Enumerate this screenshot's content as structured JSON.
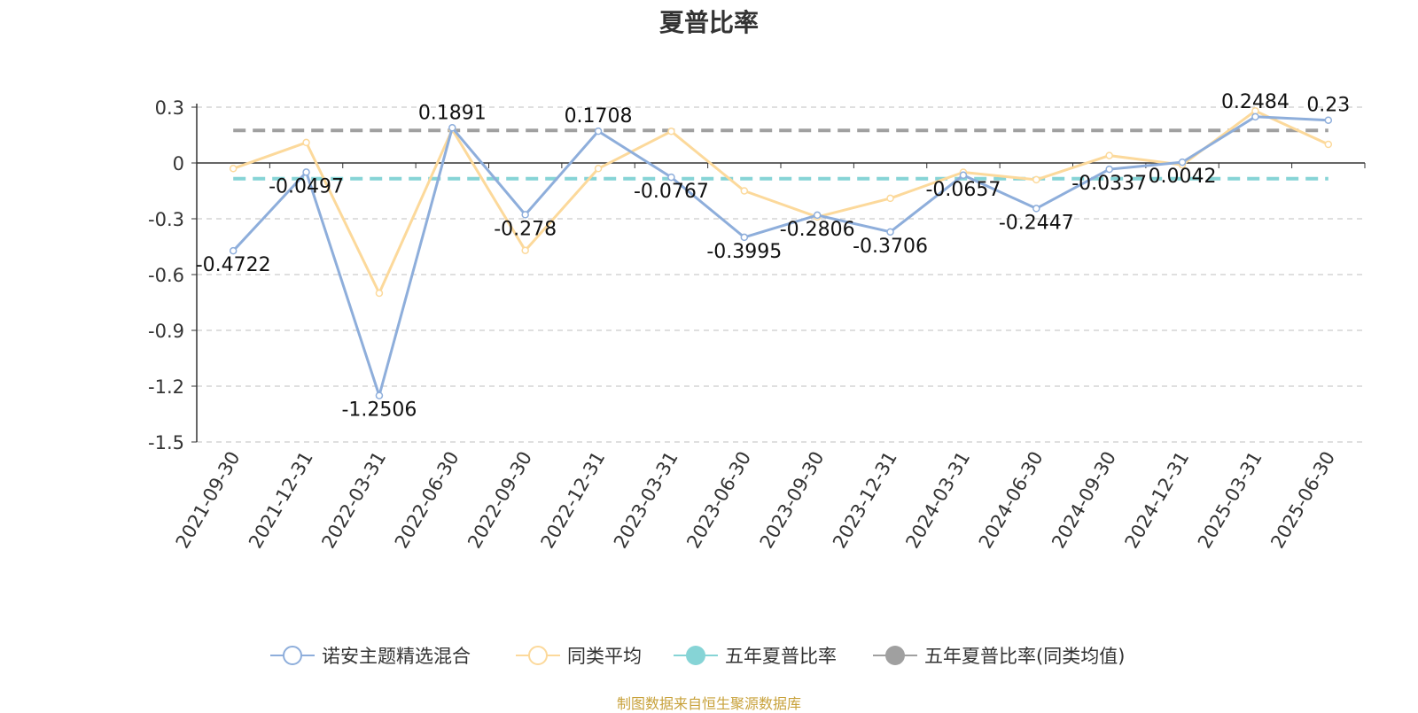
{
  "title": "夏普比率",
  "source_note": "制图数据来自恒生聚源数据库",
  "chart_data": {
    "type": "line",
    "title": "夏普比率",
    "categories": [
      "2021-09-30",
      "2021-12-31",
      "2022-03-31",
      "2022-06-30",
      "2022-09-30",
      "2022-12-31",
      "2023-03-31",
      "2023-06-30",
      "2023-09-30",
      "2023-12-31",
      "2024-03-31",
      "2024-06-30",
      "2024-09-30",
      "2024-12-31",
      "2025-03-31",
      "2025-06-30"
    ],
    "ylim": [
      -1.5,
      0.3
    ],
    "yticks": [
      "0.3",
      "0",
      "-0.3",
      "-0.6",
      "-0.9",
      "-1.2",
      "-1.5"
    ],
    "ytick_values": [
      0.3,
      0,
      -0.3,
      -0.6,
      -0.9,
      -1.2,
      -1.5
    ],
    "grid": true,
    "legend_position": "bottom",
    "series": [
      {
        "name": "诺安主题精选混合",
        "color": "#8eaedb",
        "values": [
          -0.4722,
          -0.0497,
          -1.2506,
          0.1891,
          -0.278,
          0.1708,
          -0.0767,
          -0.3995,
          -0.2806,
          -0.3706,
          -0.0657,
          -0.2447,
          -0.0337,
          0.0042,
          0.2484,
          0.23
        ],
        "data_labels": [
          "-0.4722",
          "-0.0497",
          "-1.2506",
          "0.1891",
          "-0.278",
          "0.1708",
          "-0.0767",
          "-0.3995",
          "-0.2806",
          "-0.3706",
          "-0.0657",
          "-0.2447",
          "-0.0337",
          "0.0042",
          "0.2484",
          "0.23"
        ]
      },
      {
        "name": "同类平均",
        "color": "#fcd99b",
        "values": [
          -0.03,
          0.11,
          -0.7,
          0.18,
          -0.47,
          -0.03,
          0.17,
          -0.15,
          -0.29,
          -0.19,
          -0.05,
          -0.09,
          0.04,
          -0.01,
          0.28,
          0.1
        ]
      },
      {
        "name": "五年夏普比率",
        "color": "#86d4d6",
        "values": [
          -0.085,
          -0.085,
          -0.085,
          -0.085,
          -0.085,
          -0.085,
          -0.085,
          -0.085,
          -0.085,
          -0.085,
          -0.085,
          -0.085,
          -0.085,
          -0.085,
          -0.085,
          -0.085
        ]
      },
      {
        "name": "五年夏普比率(同类均值)",
        "color": "#a0a0a0",
        "values": [
          0.175,
          0.175,
          0.175,
          0.175,
          0.175,
          0.175,
          0.175,
          0.175,
          0.175,
          0.175,
          0.175,
          0.175,
          0.175,
          0.175,
          0.175,
          0.175
        ]
      }
    ]
  }
}
